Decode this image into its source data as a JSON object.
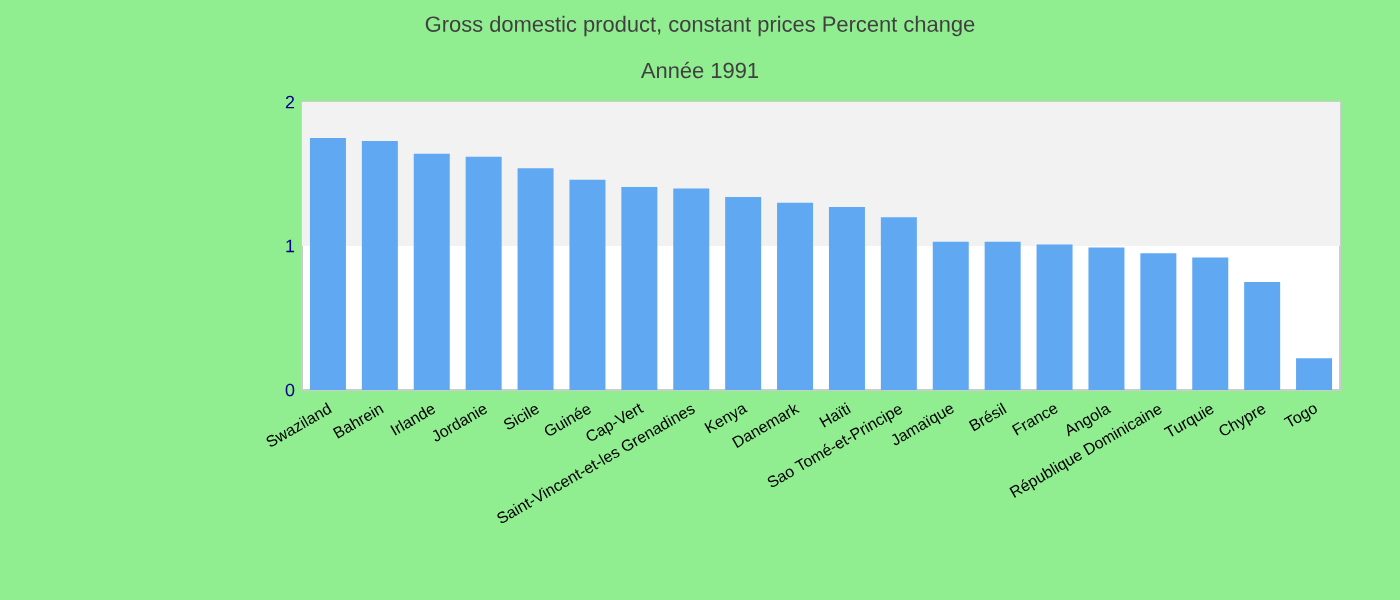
{
  "chart_data": {
    "type": "bar",
    "title": "Gross domestic product, constant prices  Percent change",
    "subtitle": "Année 1991",
    "categories": [
      "Swaziland",
      "Bahrein",
      "Irlande",
      "Jordanie",
      "Sicile",
      "Guinée",
      "Cap-Vert",
      "Saint-Vincent-et-les Grenadines",
      "Kenya",
      "Danemark",
      "Haïti",
      "Sao Tomé-et-Principe",
      "Jamaïque",
      "Brésil",
      "France",
      "Angola",
      "République Dominicaine",
      "Turquie",
      "Chypre",
      "Togo"
    ],
    "values": [
      1.75,
      1.73,
      1.64,
      1.62,
      1.54,
      1.46,
      1.41,
      1.4,
      1.34,
      1.3,
      1.27,
      1.2,
      1.03,
      1.03,
      1.01,
      0.99,
      0.95,
      0.92,
      0.75,
      0.22
    ],
    "color": "#61a8f2",
    "ylim": [
      0,
      2
    ],
    "yticks": [
      0,
      1,
      2
    ],
    "bands": [
      {
        "axis": "y",
        "from": 1,
        "to": 2,
        "color": "#f2f2f2"
      }
    ],
    "grid": false
  }
}
